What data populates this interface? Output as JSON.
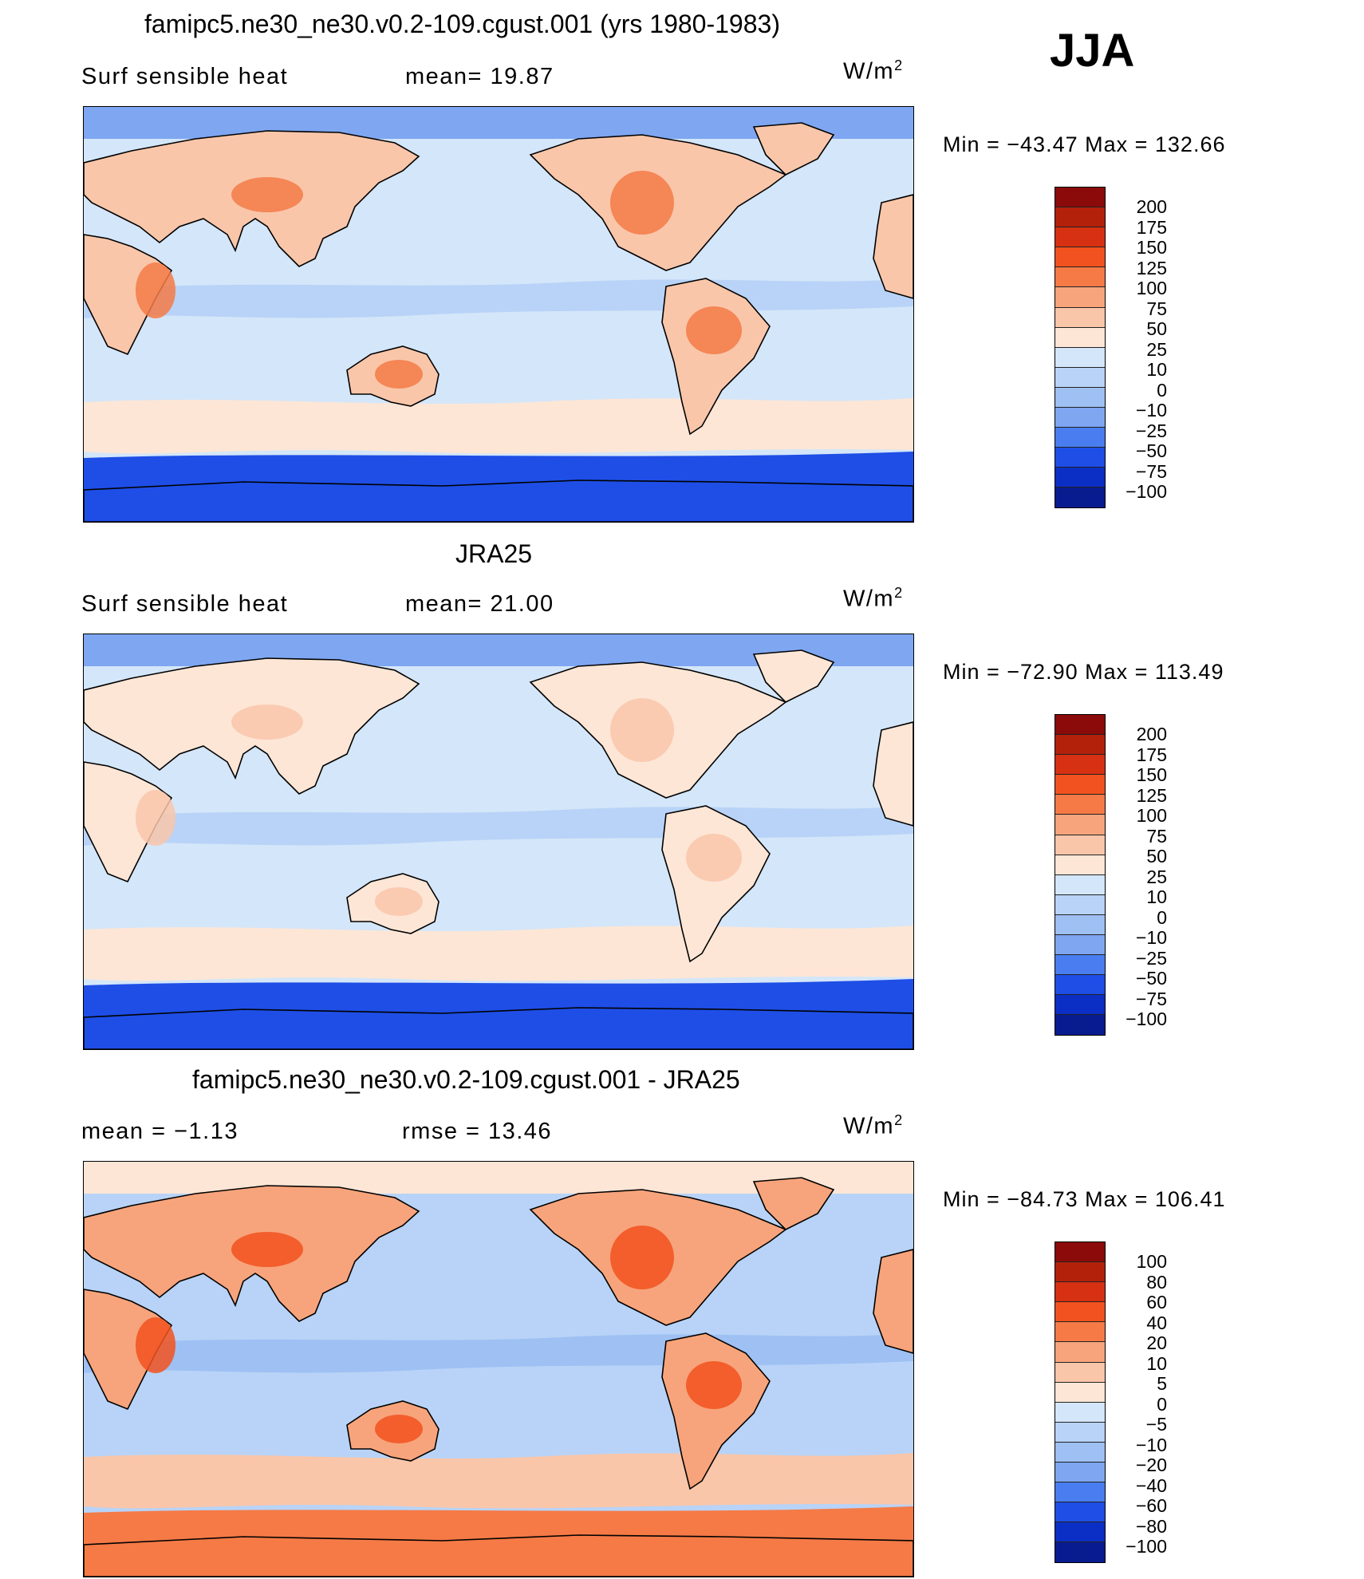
{
  "season": "JJA",
  "panels": [
    {
      "title": "famipc5.ne30_ne30.v0.2-109.cgust.001 (yrs 1980-1983)",
      "left_label": "Surf  sensible  heat",
      "mid_label": "mean=   19.87",
      "units": "W/m",
      "units_sup": "2",
      "minmax": "Min  =  −43.47  Max  =  132.66",
      "levels": [
        "200",
        "175",
        "150",
        "125",
        "100",
        "75",
        "50",
        "25",
        "10",
        "0",
        "−10",
        "−25",
        "−50",
        "−75",
        "−100"
      ],
      "colors": [
        "#8b0a0a",
        "#b3210b",
        "#d63112",
        "#f2521f",
        "#f57a46",
        "#f7a47c",
        "#f9c6aa",
        "#fde6d6",
        "#d4e6f9",
        "#b8d3f7",
        "#9ec0f3",
        "#7ea6f1",
        "#4a7ef0",
        "#1e4ee6",
        "#0b2fc4",
        "#081c90"
      ],
      "field": {
        "ocean": "#d4e6f9",
        "land": "#f9c6aa",
        "land_hot": "#f57a46",
        "south": "#1e4ee6",
        "storm": "#fde6d6",
        "arctic": "#7ea6f1",
        "band": "#b8d3f7"
      }
    },
    {
      "title": "JRA25",
      "left_label": "Surf  sensible  heat",
      "mid_label": "mean=   21.00",
      "units": "W/m",
      "units_sup": "2",
      "minmax": "Min  =  −72.90  Max  =  113.49",
      "levels": [
        "200",
        "175",
        "150",
        "125",
        "100",
        "75",
        "50",
        "25",
        "10",
        "0",
        "−10",
        "−25",
        "−50",
        "−75",
        "−100"
      ],
      "colors": [
        "#8b0a0a",
        "#b3210b",
        "#d63112",
        "#f2521f",
        "#f57a46",
        "#f7a47c",
        "#f9c6aa",
        "#fde6d6",
        "#d4e6f9",
        "#b8d3f7",
        "#9ec0f3",
        "#7ea6f1",
        "#4a7ef0",
        "#1e4ee6",
        "#0b2fc4",
        "#081c90"
      ],
      "field": {
        "ocean": "#d4e6f9",
        "land": "#fde6d6",
        "land_hot": "#f9c6aa",
        "south": "#1e4ee6",
        "storm": "#fde6d6",
        "arctic": "#7ea6f1",
        "band": "#b8d3f7"
      }
    },
    {
      "title": "famipc5.ne30_ne30.v0.2-109.cgust.001 - JRA25",
      "left_label": "mean  =     −1.13",
      "mid_label": "rmse  =     13.46",
      "units": "W/m",
      "units_sup": "2",
      "minmax": "Min  =  −84.73  Max  =  106.41",
      "levels": [
        "100",
        "80",
        "60",
        "40",
        "20",
        "10",
        "5",
        "0",
        "−5",
        "−10",
        "−20",
        "−40",
        "−60",
        "−80",
        "−100"
      ],
      "colors": [
        "#8b0a0a",
        "#b3210b",
        "#d63112",
        "#f2521f",
        "#f57a46",
        "#f7a47c",
        "#f9c6aa",
        "#fde6d6",
        "#d4e6f9",
        "#b8d3f7",
        "#9ec0f3",
        "#7ea6f1",
        "#4a7ef0",
        "#1e4ee6",
        "#0b2fc4",
        "#081c90"
      ],
      "field": {
        "ocean": "#b8d3f7",
        "land": "#f7a47c",
        "land_hot": "#f2521f",
        "south": "#f57a46",
        "storm": "#f9c6aa",
        "arctic": "#fde6d6",
        "band": "#9ec0f3"
      }
    }
  ]
}
